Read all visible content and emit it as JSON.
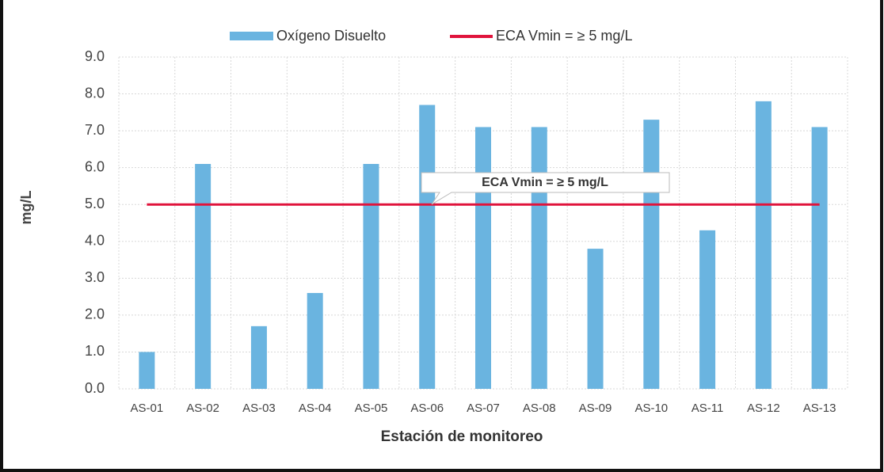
{
  "chart_data": {
    "type": "bar",
    "categories": [
      "AS-01",
      "AS-02",
      "AS-03",
      "AS-04",
      "AS-05",
      "AS-06",
      "AS-07",
      "AS-08",
      "AS-09",
      "AS-10",
      "AS-11",
      "AS-12",
      "AS-13"
    ],
    "series": [
      {
        "name": "Oxígeno Disuelto",
        "color": "#6ab4e0",
        "values": [
          1.0,
          6.1,
          1.7,
          2.6,
          6.1,
          7.7,
          7.1,
          7.1,
          3.8,
          7.3,
          4.3,
          7.8,
          7.1
        ]
      }
    ],
    "reference_line": {
      "name": "ECA Vmin = ≥ 5 mg/L",
      "value": 5,
      "color": "#e0143c"
    },
    "annotations": [
      {
        "text": "ECA Vmin = ≥ 5 mg/L"
      }
    ],
    "ylabel": "mg/L",
    "xlabel": "Estación de monitoreo",
    "ylim": [
      0,
      9
    ],
    "yticks": [
      {
        "value": 0,
        "label": "0.0"
      },
      {
        "value": 1,
        "label": "1.0"
      },
      {
        "value": 2,
        "label": "2.0"
      },
      {
        "value": 3,
        "label": "3.0"
      },
      {
        "value": 4,
        "label": "4.0"
      },
      {
        "value": 5,
        "label": "5.0"
      },
      {
        "value": 6,
        "label": "6.0"
      },
      {
        "value": 7,
        "label": "7.0"
      },
      {
        "value": 8,
        "label": "8.0"
      },
      {
        "value": 9,
        "label": "9.0"
      }
    ],
    "grid": true,
    "legend": "top"
  }
}
